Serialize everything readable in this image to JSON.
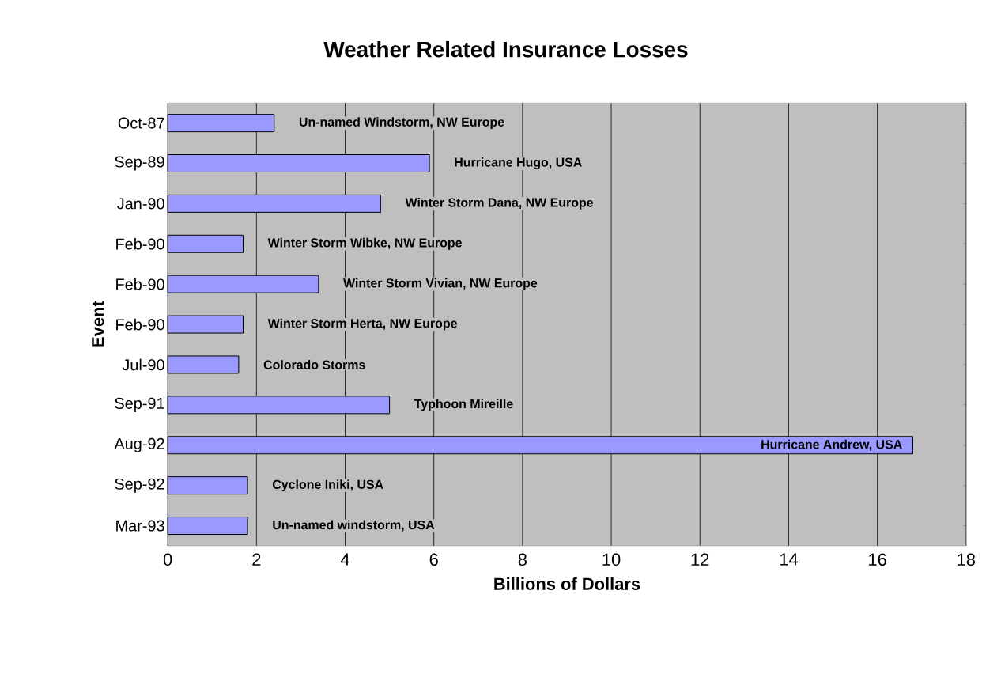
{
  "chart_data": {
    "type": "bar",
    "orientation": "horizontal",
    "title": "Weather Related Insurance Losses",
    "xlabel": "Billions of Dollars",
    "ylabel": "Event",
    "categories": [
      "Oct-87",
      "Sep-89",
      "Jan-90",
      "Feb-90",
      "Feb-90",
      "Feb-90",
      "Jul-90",
      "Sep-91",
      "Aug-92",
      "Sep-92",
      "Mar-93"
    ],
    "values": [
      2.4,
      5.9,
      4.8,
      1.7,
      3.4,
      1.7,
      1.6,
      5.0,
      16.8,
      1.8,
      1.8
    ],
    "color": "#9999ff",
    "annotations": [
      "Un-named Windstorm, NW Europe",
      "Hurricane Hugo, USA",
      "Winter Storm Dana, NW Europe",
      "Winter Storm Wibke, NW Europe",
      "Winter Storm Vivian, NW Europe",
      "Winter Storm Herta, NW Europe",
      "Colorado Storms",
      "Typhoon Mireille",
      "Hurricane Andrew, USA",
      "Cyclone Iniki, USA",
      "Un-named windstorm, USA"
    ],
    "xlim": [
      0,
      18
    ],
    "xticks": [
      0,
      2,
      4,
      6,
      8,
      10,
      12,
      14,
      16,
      18
    ],
    "grid": "x"
  }
}
